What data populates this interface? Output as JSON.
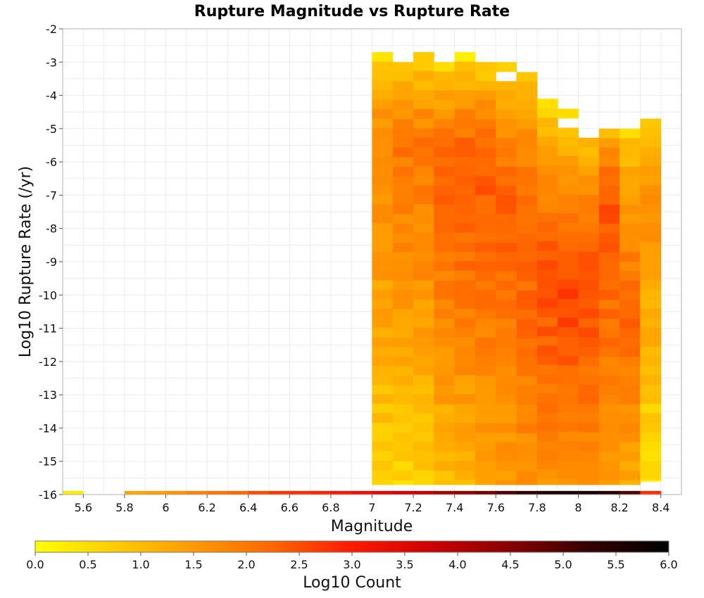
{
  "chart_data": {
    "type": "heatmap",
    "title": "Rupture Magnitude vs Rupture Rate",
    "xlabel": "Magnitude",
    "ylabel": "Log10 Rupture Rate (/yr)",
    "xlim": [
      5.5,
      8.5
    ],
    "ylim": [
      -16,
      -2
    ],
    "x_ticks": [
      "5.6",
      "5.8",
      "6",
      "6.2",
      "6.4",
      "6.6",
      "6.8",
      "7",
      "7.2",
      "7.4",
      "7.6",
      "7.8",
      "8",
      "8.2",
      "8.4"
    ],
    "x_tick_values": [
      5.6,
      5.8,
      6.0,
      6.2,
      6.4,
      6.6,
      6.8,
      7.0,
      7.2,
      7.4,
      7.6,
      7.8,
      8.0,
      8.2,
      8.4
    ],
    "y_ticks": [
      "-2",
      "-3",
      "-4",
      "-5",
      "-6",
      "-7",
      "-8",
      "-9",
      "-10",
      "-11",
      "-12",
      "-13",
      "-14",
      "-15",
      "-16"
    ],
    "y_tick_values": [
      -2,
      -3,
      -4,
      -5,
      -6,
      -7,
      -8,
      -9,
      -10,
      -11,
      -12,
      -13,
      -14,
      -15,
      -16
    ],
    "grid": true,
    "bin_width_mag": 0.1,
    "bin_height_log_rate": 0.2857,
    "colorbar": {
      "label": "Log10 Count",
      "range": [
        0,
        6
      ],
      "ticks": [
        "0.0",
        "0.5",
        "1.0",
        "1.5",
        "2.0",
        "2.5",
        "3.0",
        "3.5",
        "4.0",
        "4.5",
        "5.0",
        "5.5",
        "6.0"
      ],
      "tick_values": [
        0,
        0.5,
        1,
        1.5,
        2,
        2.5,
        3,
        3.5,
        4,
        4.5,
        5,
        5.5,
        6
      ],
      "colors": [
        "#ffff00",
        "#ffcc00",
        "#ff9900",
        "#ff6600",
        "#ff1a00",
        "#cc0000",
        "#880000",
        "#330000",
        "#000000"
      ]
    },
    "bottom_row": {
      "rate": -16,
      "mags": [
        5.55,
        5.85,
        5.95,
        6.05,
        6.15,
        6.25,
        6.35,
        6.45,
        6.55,
        6.65,
        6.75,
        6.85,
        6.95,
        7.05,
        7.15,
        7.25,
        7.35,
        7.45,
        7.55,
        7.65,
        7.75,
        7.85,
        7.95,
        8.05,
        8.15,
        8.25,
        8.35
      ],
      "log_counts": [
        0.3,
        1.3,
        1.4,
        1.6,
        1.8,
        2.0,
        2.2,
        2.5,
        2.7,
        2.8,
        2.9,
        3.1,
        3.3,
        3.5,
        3.7,
        3.9,
        4.2,
        4.4,
        4.7,
        5.0,
        5.3,
        5.5,
        5.6,
        5.6,
        5.4,
        5.0,
        2.8
      ]
    },
    "columns": [
      {
        "mag": 7.05,
        "top": -2.7,
        "bottom": -15.7,
        "top_val": 0.3,
        "peak_rate": -5.5,
        "peak_val": 1.8,
        "bottom_val": 0.6
      },
      {
        "mag": 7.15,
        "top": -3.0,
        "bottom": -15.7,
        "top_val": 0.5,
        "peak_rate": -5.2,
        "peak_val": 2.0,
        "bottom_val": 0.6
      },
      {
        "mag": 7.25,
        "top": -2.7,
        "bottom": -15.7,
        "top_val": 0.3,
        "peak_rate": -5.5,
        "peak_val": 2.0,
        "bottom_val": 0.7
      },
      {
        "mag": 7.35,
        "top": -3.0,
        "bottom": -15.7,
        "top_val": 0.2,
        "peak_rate": -6.0,
        "peak_val": 2.3,
        "bottom_val": 0.9
      },
      {
        "mag": 7.45,
        "top": -2.7,
        "bottom": -15.7,
        "top_val": 0.1,
        "peak_rate": -6.0,
        "peak_val": 2.4,
        "bottom_val": 1.0
      },
      {
        "mag": 7.55,
        "top": -3.0,
        "bottom": -15.7,
        "top_val": 0.4,
        "peak_rate": -6.2,
        "peak_val": 2.4,
        "bottom_val": 1.2
      },
      {
        "mag": 7.65,
        "top": -3.0,
        "bottom": -15.7,
        "top_val": 0.5,
        "peak_rate": -7.0,
        "peak_val": 2.3,
        "bottom_val": 1.4
      },
      {
        "mag": 7.75,
        "top": -3.3,
        "bottom": -15.7,
        "top_val": 0.7,
        "peak_rate": -8.5,
        "peak_val": 2.3,
        "bottom_val": 1.5
      },
      {
        "mag": 7.85,
        "top": -4.1,
        "bottom": -15.7,
        "top_val": 0.3,
        "peak_rate": -9.5,
        "peak_val": 2.5,
        "bottom_val": 1.6
      },
      {
        "mag": 7.95,
        "top": -4.4,
        "bottom": -15.7,
        "top_val": 0.1,
        "peak_rate": -9.8,
        "peak_val": 2.6,
        "bottom_val": 1.6
      },
      {
        "mag": 8.05,
        "top": -4.7,
        "bottom": -15.7,
        "top_val": 0.3,
        "peak_rate": -9.8,
        "peak_val": 2.5,
        "bottom_val": 1.5
      },
      {
        "mag": 8.15,
        "top": -5.0,
        "bottom": -15.7,
        "top_val": 0.7,
        "peak_rate": -7.0,
        "peak_val": 2.4,
        "bottom_val": 1.5
      },
      {
        "mag": 8.25,
        "top": -5.0,
        "bottom": -15.7,
        "top_val": 0.5,
        "peak_rate": -10.5,
        "peak_val": 2.2,
        "bottom_val": 1.2
      },
      {
        "mag": 8.35,
        "top": -4.7,
        "bottom": -15.6,
        "top_val": 0.6,
        "peak_rate": -7.0,
        "peak_val": 1.6,
        "bottom_val": 0.4
      }
    ],
    "empty_cells": [
      {
        "mag": 7.15,
        "rate": -2.85
      },
      {
        "mag": 7.35,
        "rate": -2.85
      },
      {
        "mag": 7.65,
        "rate": -3.35
      },
      {
        "mag": 7.95,
        "rate": -4.75
      },
      {
        "mag": 8.05,
        "rate": -4.9
      },
      {
        "mag": 8.05,
        "rate": -5.15
      }
    ]
  }
}
